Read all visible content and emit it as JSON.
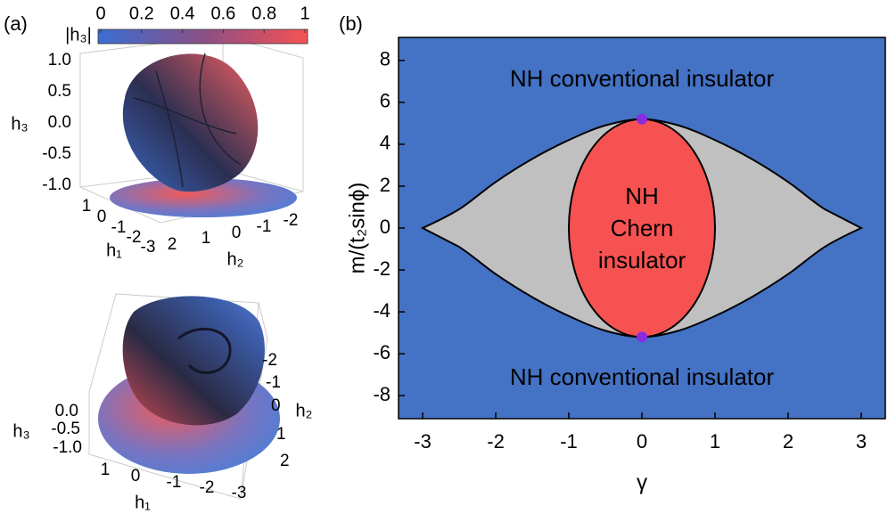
{
  "panel_a": {
    "label": "(a)",
    "colorbar": {
      "label": "|h₃|",
      "ticks": [
        0,
        0.2,
        0.4,
        0.6,
        0.8,
        1
      ]
    },
    "top_plot": {
      "h3_label": "h₃",
      "h3_ticks": [
        "1.0",
        "0.5",
        "0.0",
        "-0.5",
        "-1.0"
      ],
      "h1_label": "h₁",
      "h1_ticks": [
        "1",
        "0",
        "-1",
        "-2",
        "-3"
      ],
      "h2_label": "h₂",
      "h2_ticks": [
        "2",
        "1",
        "0",
        "-1",
        "-2"
      ]
    },
    "bottom_plot": {
      "h3_label": "h₃",
      "h3_ticks": [
        "0.0",
        "-0.5",
        "-1.0"
      ],
      "h1_label": "h₁",
      "h1_ticks": [
        "1",
        "0",
        "-1",
        "-2",
        "-3"
      ],
      "h2_label": "h₂",
      "h2_ticks": [
        "-2",
        "-1",
        "0",
        "1",
        "2"
      ]
    }
  },
  "chart_data": {
    "type": "phase-diagram",
    "panel_label": "(b)",
    "xlabel": "γ",
    "ylabel": "m/(t₂sinϕ)",
    "xlim": [
      -3.33,
      3.33
    ],
    "ylim": [
      -9.1,
      9.1
    ],
    "xticks": [
      -3,
      -2,
      -1,
      0,
      1,
      2,
      3
    ],
    "yticks": [
      -8,
      -6,
      -4,
      -2,
      0,
      2,
      4,
      6,
      8
    ],
    "background_color": "#4472c4",
    "region_labels": [
      "NH conventional insulator",
      "NH conventional insulator"
    ],
    "boundary": {
      "color": "#c0c0c0",
      "x": [
        -3,
        -2.5,
        -2,
        -1.5,
        -1,
        -0.5,
        0,
        0.5,
        1,
        1.5,
        2,
        2.5,
        3,
        2.5,
        2,
        1.5,
        1,
        0.5,
        0,
        -0.5,
        -1,
        -1.5,
        -2,
        -2.5
      ],
      "values": [
        0,
        0.9,
        2.2,
        3.3,
        4.2,
        4.9,
        5.2,
        4.9,
        4.2,
        3.3,
        2.2,
        0.9,
        0,
        -0.9,
        -2.2,
        -3.3,
        -4.2,
        -4.9,
        -5.2,
        -4.9,
        -4.2,
        -3.3,
        -2.2,
        -0.9
      ]
    },
    "chern_region": {
      "label_lines": [
        "NH",
        "Chern",
        "insulator"
      ],
      "color": "#f75252",
      "center": [
        0,
        0
      ],
      "semi_axes": [
        1,
        5.2
      ]
    },
    "critical_points": {
      "color": "#8a2be2",
      "x": [
        0,
        0
      ],
      "values": [
        5.2,
        -5.2
      ]
    }
  }
}
